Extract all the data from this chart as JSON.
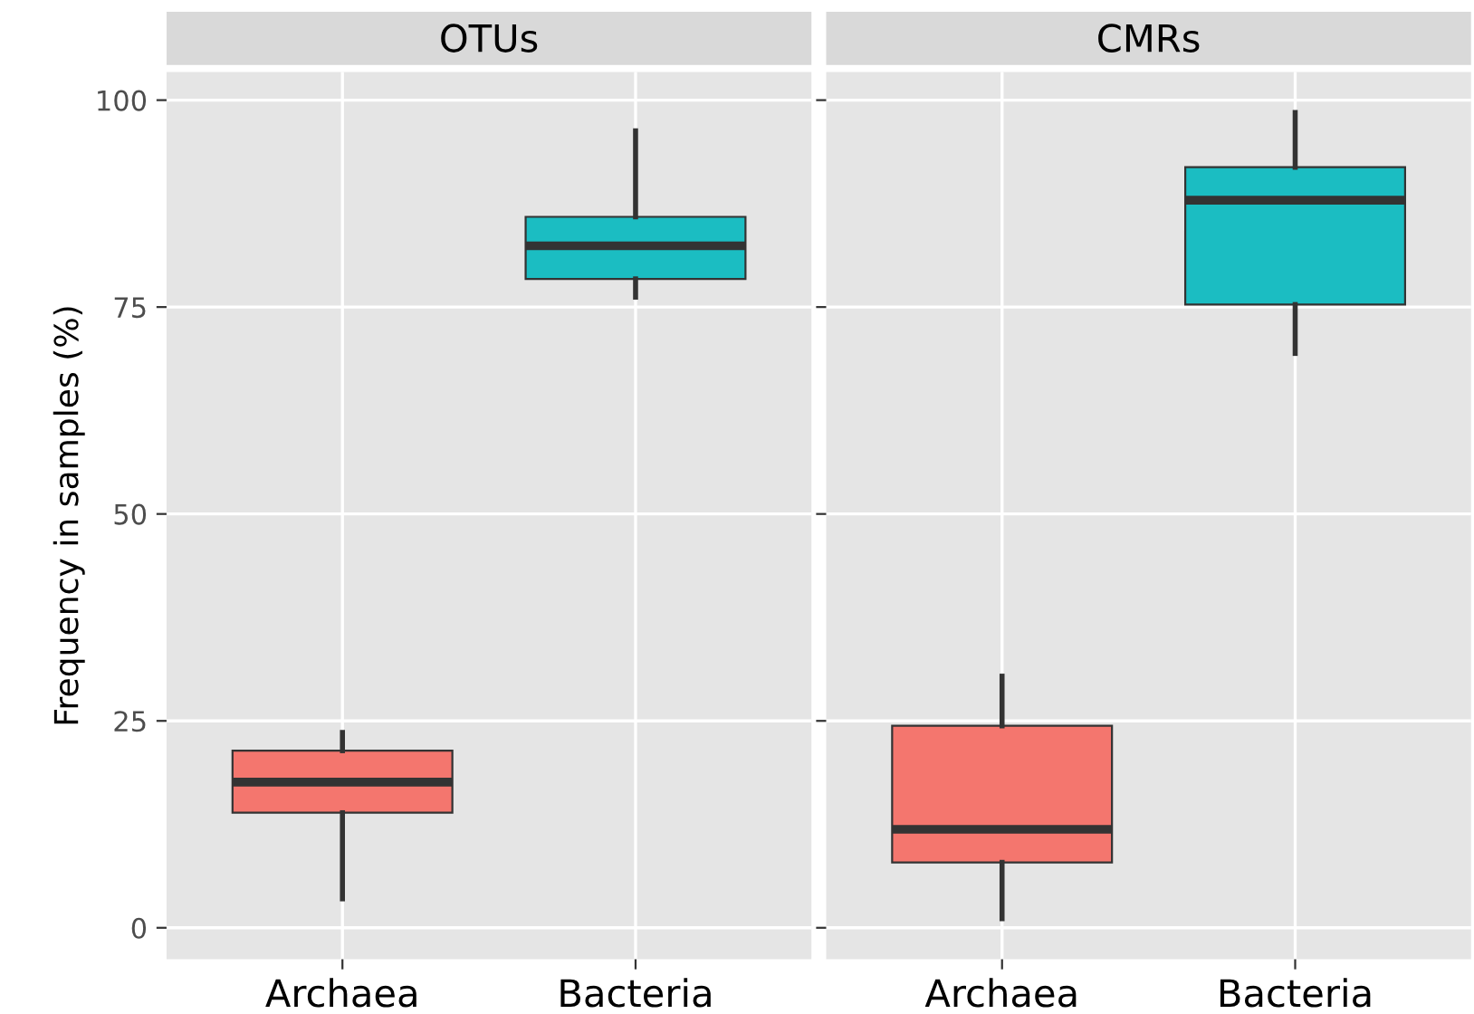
{
  "chart_data": [
    {
      "type": "box",
      "title": "OTUs",
      "ylabel": "Frequency in samples (%)",
      "categories": [
        "Archaea",
        "Bacteria"
      ],
      "colors": [
        "#f4766e",
        "#1bbdc2"
      ],
      "boxes": [
        {
          "low": 3.5,
          "q1": 13.9,
          "median": 17.6,
          "q3": 21.4,
          "high": 23.6
        },
        {
          "low": 76.2,
          "q1": 78.4,
          "median": 82.4,
          "q3": 85.9,
          "high": 96.3
        }
      ],
      "ylim": [
        -3.8,
        103.4
      ],
      "yticks": [
        0,
        25,
        50,
        75,
        100
      ],
      "grid": true
    },
    {
      "type": "box",
      "title": "CMRs",
      "categories": [
        "Archaea",
        "Bacteria"
      ],
      "colors": [
        "#f4766e",
        "#1bbdc2"
      ],
      "boxes": [
        {
          "low": 1.1,
          "q1": 7.9,
          "median": 11.9,
          "q3": 24.4,
          "high": 30.4
        },
        {
          "low": 69.4,
          "q1": 75.3,
          "median": 87.9,
          "q3": 91.9,
          "high": 98.5
        }
      ],
      "ylim": [
        -3.8,
        103.4
      ],
      "yticks": [
        0,
        25,
        50,
        75,
        100
      ],
      "grid": true,
      "tick_labels": "x"
    }
  ]
}
